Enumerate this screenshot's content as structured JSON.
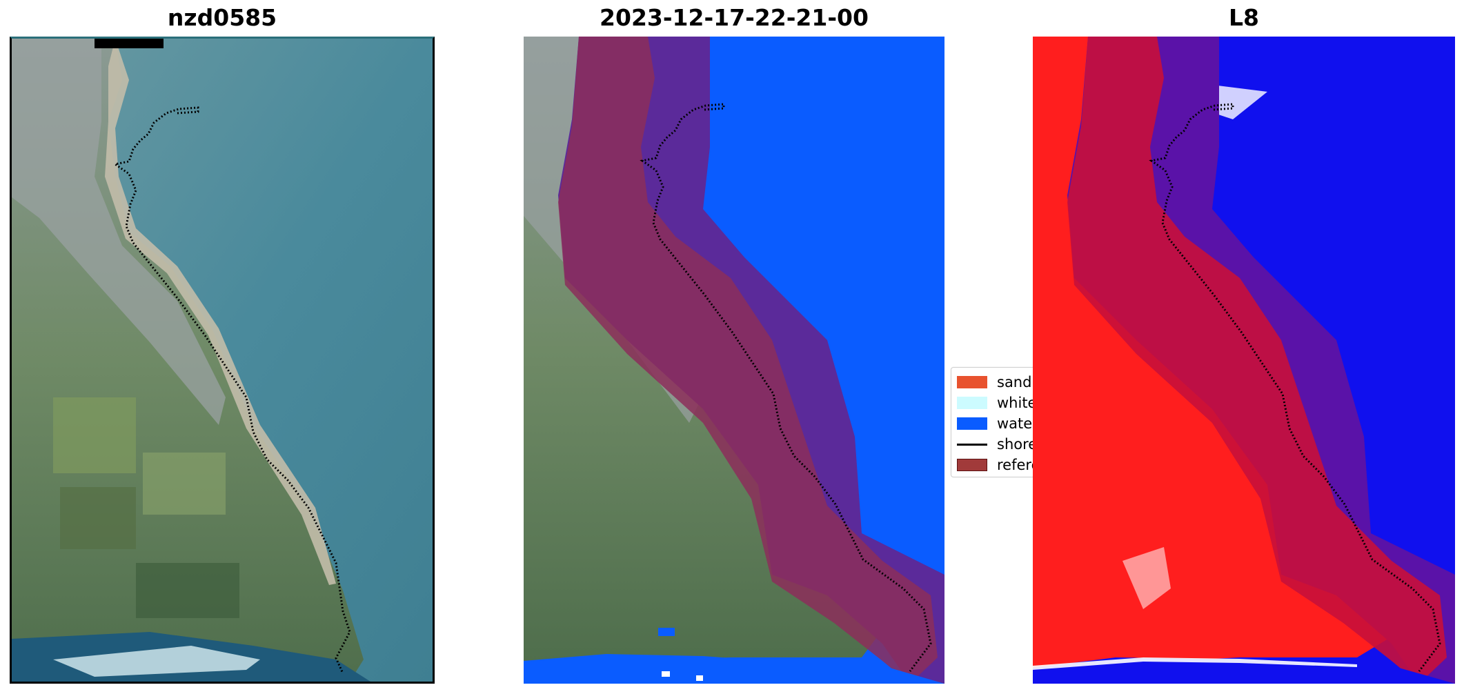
{
  "panels": [
    {
      "title": "nzd0585"
    },
    {
      "title": "2023-12-17-22-21-00"
    },
    {
      "title": "L8"
    }
  ],
  "legend": {
    "items": [
      {
        "label": "sand",
        "color": "#e8522e",
        "kind": "patch"
      },
      {
        "label": "white-water",
        "color": "#ccfbff",
        "kind": "patch"
      },
      {
        "label": "water",
        "color": "#0a5cff",
        "kind": "patch"
      },
      {
        "label": "shoreline",
        "color": "#000000",
        "kind": "line"
      },
      {
        "label": "reference shoreline buffer",
        "color": "#a13a3a",
        "kind": "patch"
      }
    ]
  },
  "colors": {
    "sea": "#4f8fa0",
    "land": "#6d8a6a",
    "urban": "#9aa4a8",
    "sand_beach": "#b7b3a3",
    "buffer": "#9b2a55",
    "water_class": "#0a5cff",
    "l8_land": "#ff2020",
    "l8_water": "#1010f0"
  }
}
